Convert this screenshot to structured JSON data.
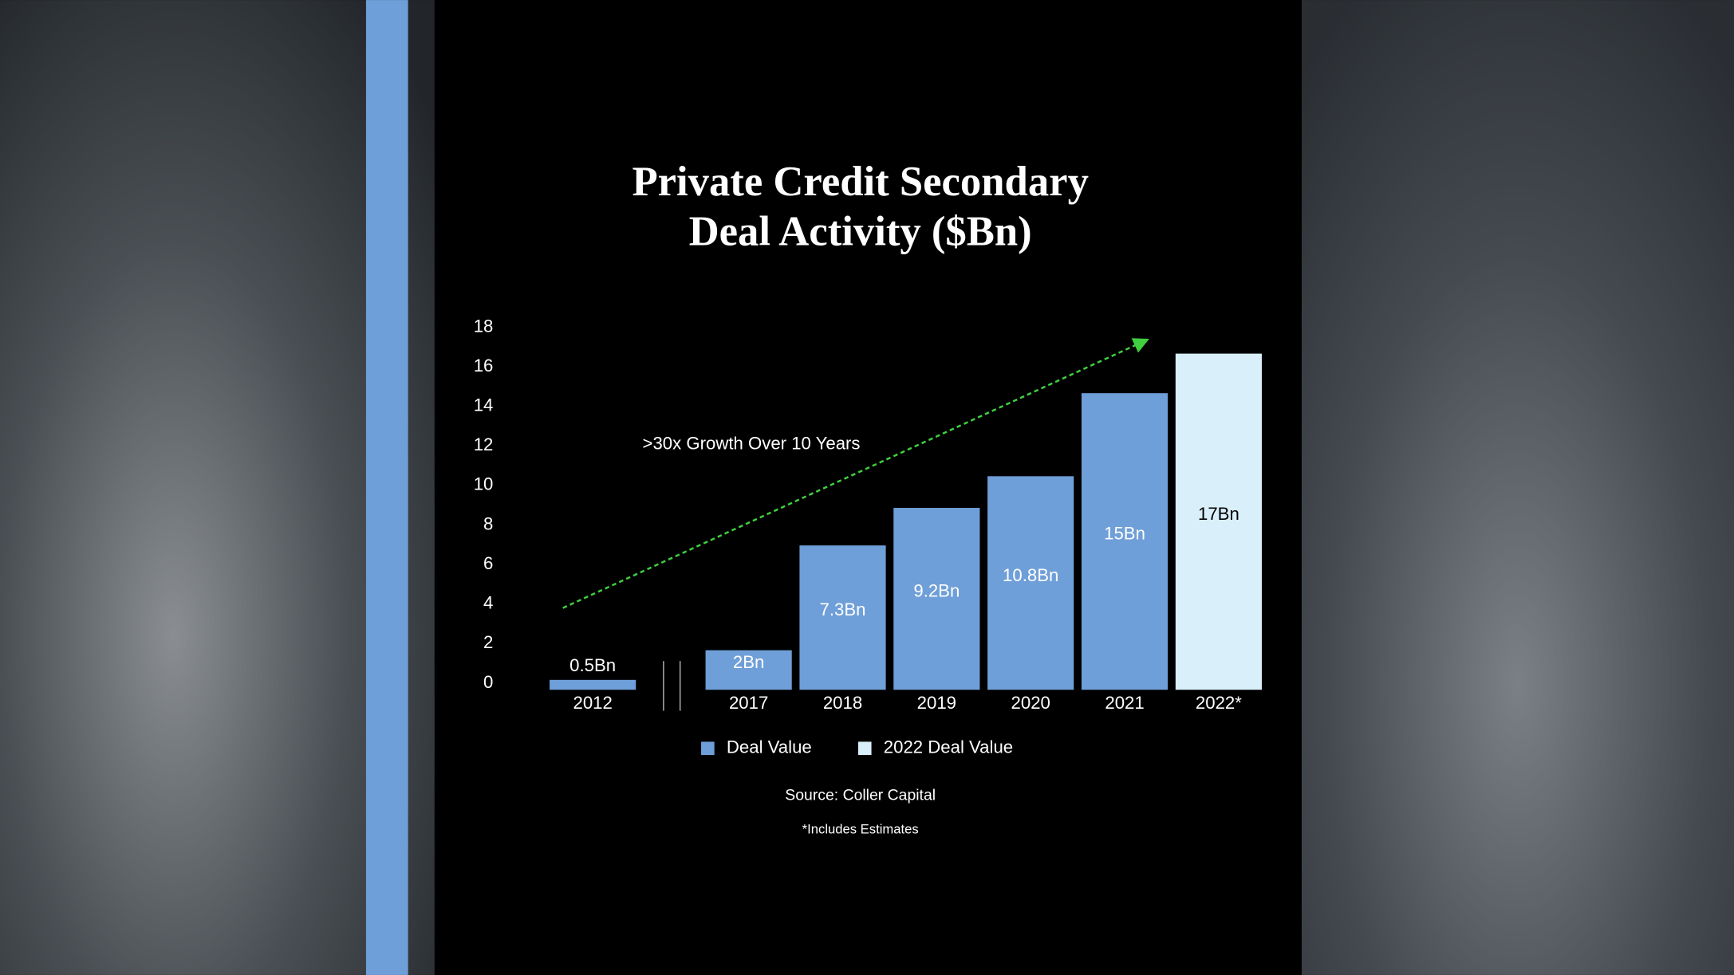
{
  "chart_data": {
    "type": "bar",
    "title": [
      "Private Credit Secondary",
      "Deal Activity ($Bn)"
    ],
    "categories": [
      "2012",
      "2017",
      "2018",
      "2019",
      "2020",
      "2021",
      "2022*"
    ],
    "series": [
      {
        "name": "Deal Value",
        "color": "#6f9fd8",
        "values": [
          0.5,
          2,
          7.3,
          9.2,
          10.8,
          15,
          null
        ],
        "value_labels": [
          "0.5Bn",
          "2Bn",
          "7.3Bn",
          "9.2Bn",
          "10.8Bn",
          "15Bn",
          null
        ]
      },
      {
        "name": "2022 Deal Value",
        "color": "#d9effa",
        "values": [
          null,
          null,
          null,
          null,
          null,
          null,
          17
        ],
        "value_labels": [
          null,
          null,
          null,
          null,
          null,
          null,
          "17Bn"
        ]
      }
    ],
    "ylim": [
      0,
      18
    ],
    "yticks": [
      0,
      2,
      4,
      6,
      8,
      10,
      12,
      14,
      16,
      18
    ],
    "annotation": ">30x Growth Over 10 Years",
    "source": "Source: Coller Capital",
    "note": "*Includes Estimates"
  }
}
